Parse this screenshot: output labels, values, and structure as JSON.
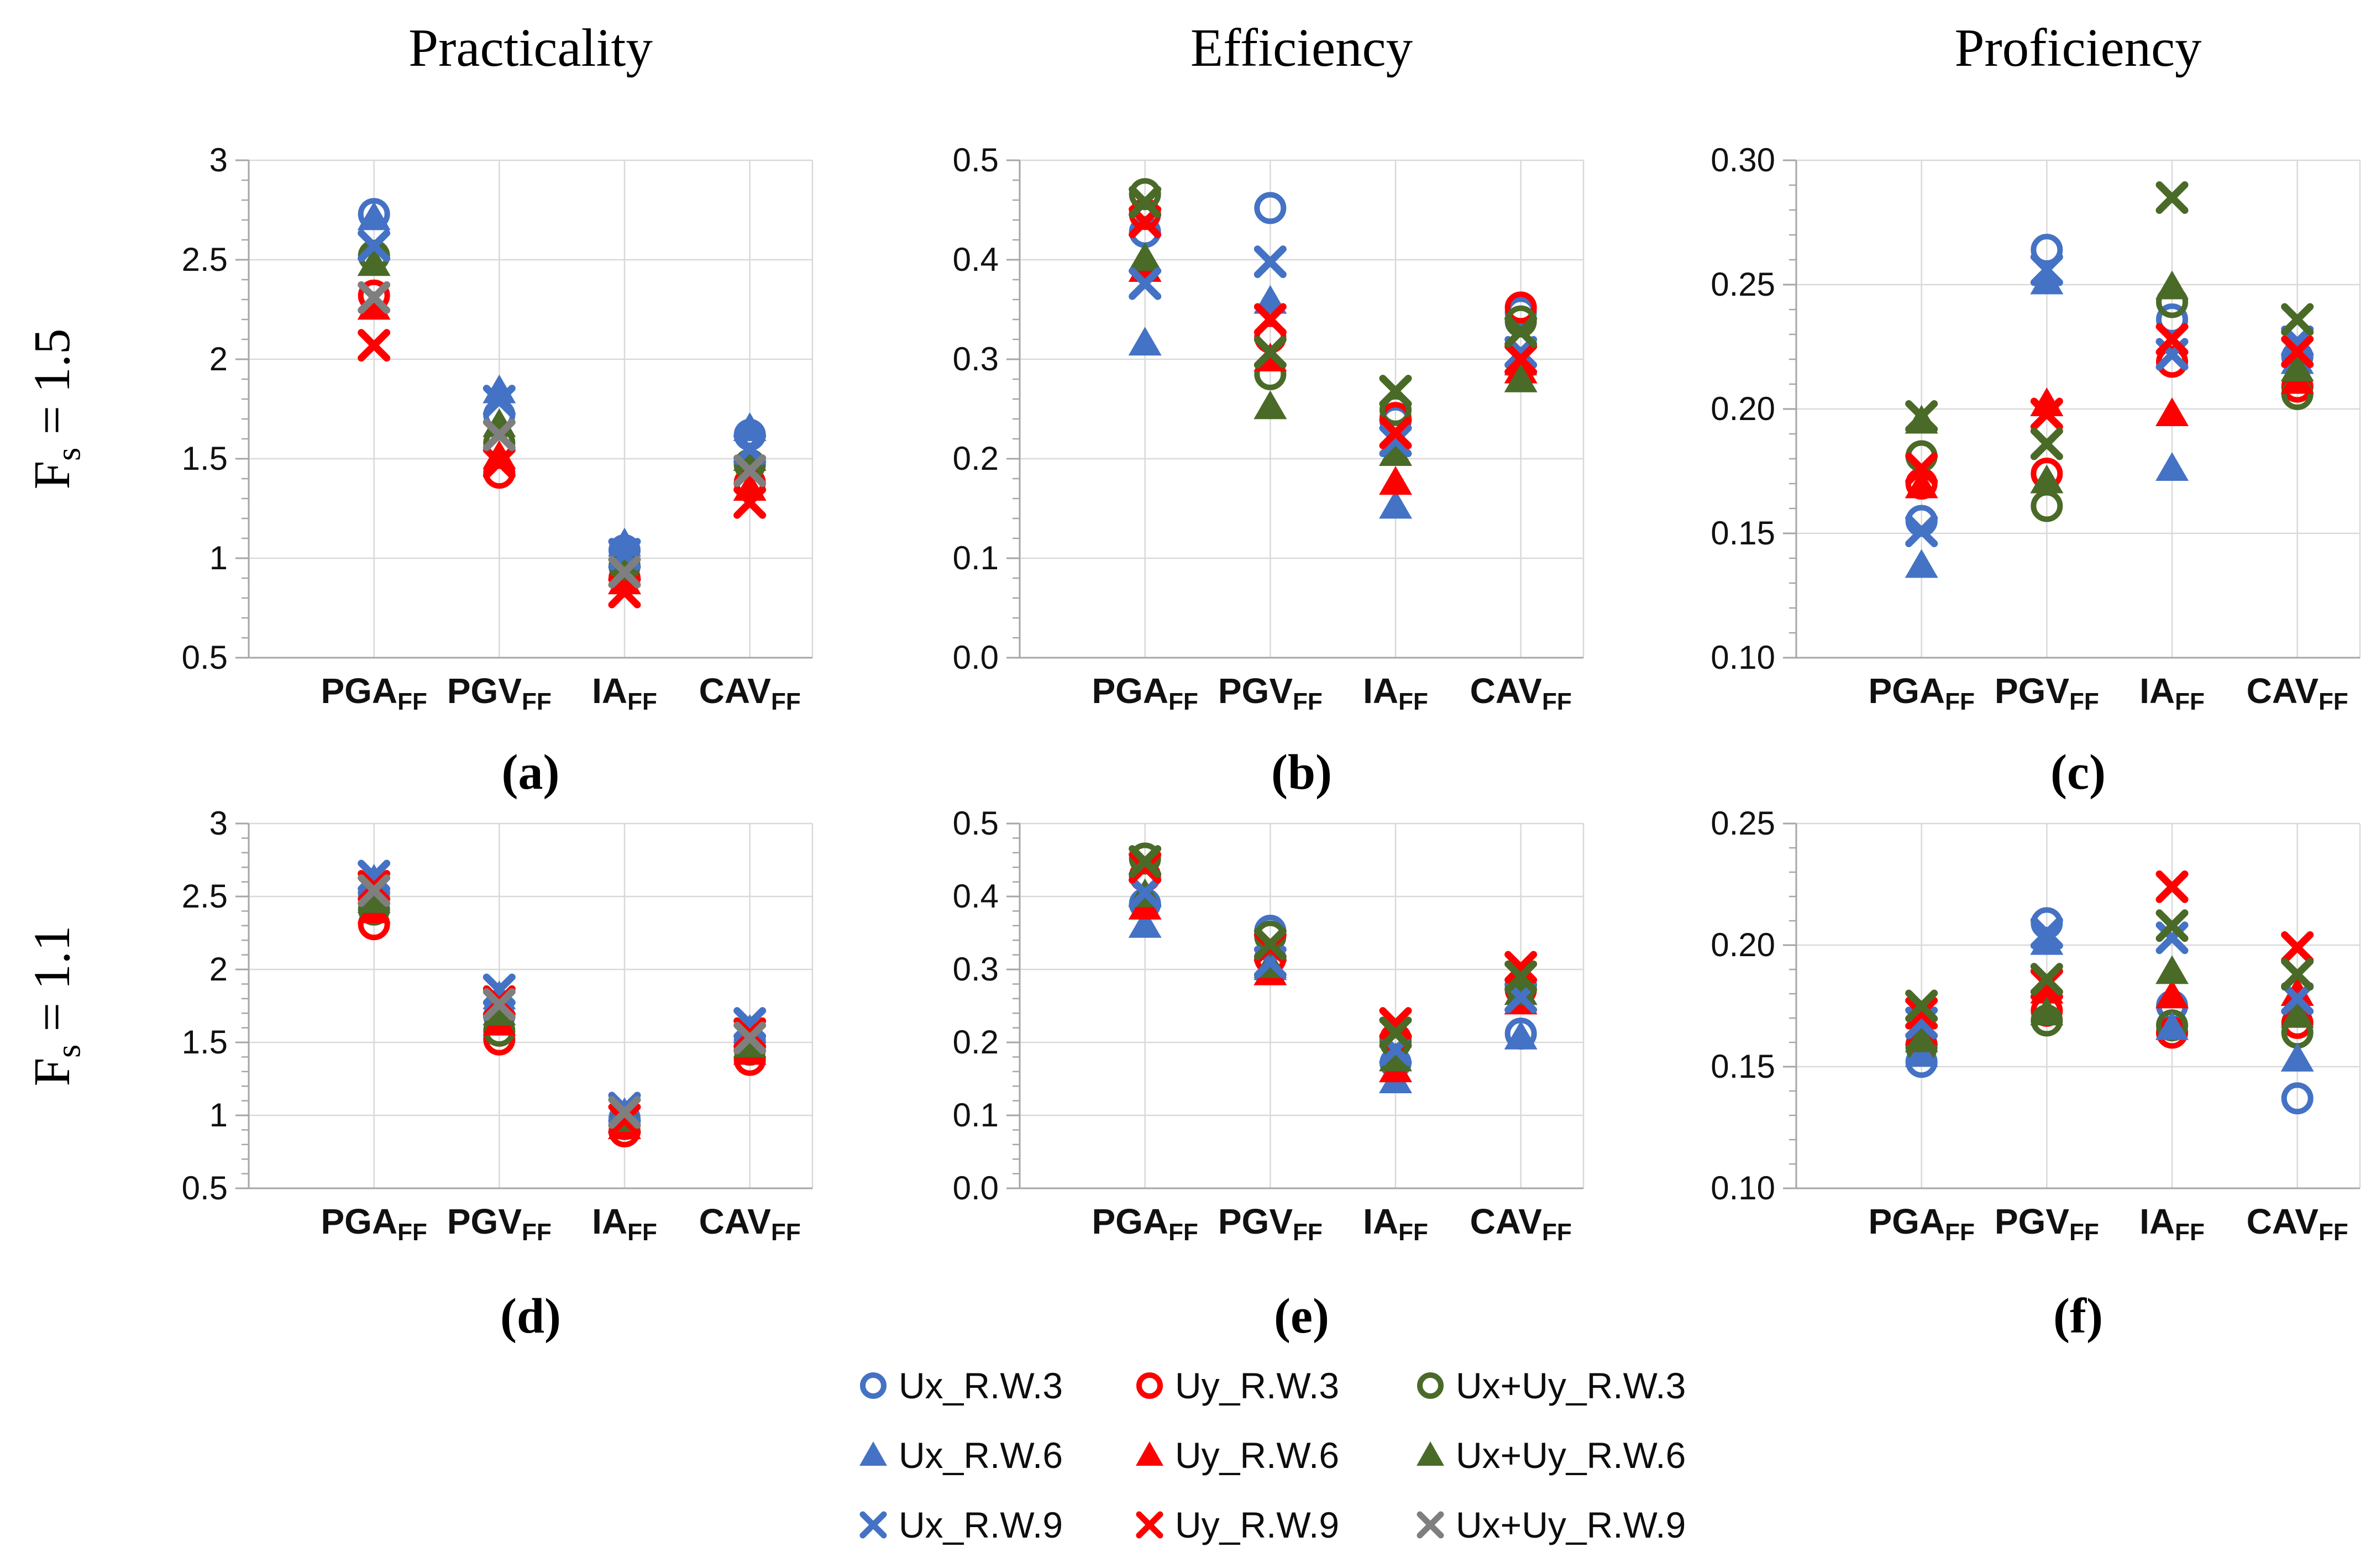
{
  "figure": {
    "column_titles": [
      "Practicality",
      "Efficiency",
      "Proficiency"
    ],
    "row_labels": [
      {
        "main": "F",
        "sub": "s",
        "rest": " = 1.5",
        "text": "Fs = 1.5"
      },
      {
        "main": "F",
        "sub": "s",
        "rest": " = 1.1",
        "text": "Fs = 1.1"
      }
    ]
  },
  "colors": {
    "blue": "#4472C4",
    "red": "#FF0000",
    "green": "#4A6A28",
    "gray": "#7F7F7F",
    "grid": "#D9D9D9",
    "axis": "#A6A6A6",
    "text": "#000000"
  },
  "categories_display": [
    {
      "base": "PGA",
      "sub": "FF"
    },
    {
      "base": "PGV",
      "sub": "FF"
    },
    {
      "base": "IA",
      "sub": "FF"
    },
    {
      "base": "CAV",
      "sub": "FF"
    }
  ],
  "series_defs": [
    {
      "name": "Ux_R.W.3",
      "marker": "circle",
      "color": "blue"
    },
    {
      "name": "Uy_R.W.3",
      "marker": "circle",
      "color": "red"
    },
    {
      "name": "Ux+Uy_R.W.3",
      "marker": "circle",
      "color": "green"
    },
    {
      "name": "Ux_R.W.6",
      "marker": "triangle",
      "color": "blue"
    },
    {
      "name": "Uy_R.W.6",
      "marker": "triangle",
      "color": "red"
    },
    {
      "name": "Ux+Uy_R.W.6",
      "marker": "triangle",
      "color": "green"
    },
    {
      "name": "Ux_R.W.9",
      "marker": "x",
      "color": "blue"
    },
    {
      "name": "Uy_R.W.9",
      "marker": "x",
      "color": "red"
    },
    {
      "name": "Ux+Uy_R.W.9",
      "marker": "x",
      "color": "gray"
    }
  ],
  "legend": {
    "items": [
      {
        "label": "Ux_R.W.3",
        "marker": "circle",
        "color": "blue",
        "row": 0,
        "col": 0
      },
      {
        "label": "Uy_R.W.3",
        "marker": "circle",
        "color": "red",
        "row": 0,
        "col": 1
      },
      {
        "label": "Ux+Uy_R.W.3",
        "marker": "circle",
        "color": "green",
        "row": 0,
        "col": 2
      },
      {
        "label": "Ux_R.W.6",
        "marker": "triangle",
        "color": "blue",
        "row": 1,
        "col": 0
      },
      {
        "label": "Uy_R.W.6",
        "marker": "triangle",
        "color": "red",
        "row": 1,
        "col": 1
      },
      {
        "label": "Ux+Uy_R.W.6",
        "marker": "triangle",
        "color": "green",
        "row": 1,
        "col": 2
      },
      {
        "label": "Ux_R.W.9",
        "marker": "x",
        "color": "blue",
        "row": 2,
        "col": 0
      },
      {
        "label": "Uy_R.W.9",
        "marker": "x",
        "color": "red",
        "row": 2,
        "col": 1
      },
      {
        "label": "Ux+Uy_R.W.9",
        "marker": "x",
        "color": "gray",
        "row": 2,
        "col": 2
      }
    ]
  },
  "chart_data": [
    {
      "panel": "a",
      "letter": "(a)",
      "type": "scatter",
      "title": "Practicality",
      "row_label": "Fs = 1.5",
      "categories": [
        "PGA_FF",
        "PGV_FF",
        "IA_FF",
        "CAV_FF"
      ],
      "ylim": [
        0.5,
        3
      ],
      "ytick_values": [
        3,
        2.5,
        2,
        1.5,
        1,
        0.5
      ],
      "ytick_labels": [
        "3",
        "2.5",
        "2",
        "1.5",
        "1",
        "0.5"
      ],
      "minor_step": 0.1,
      "grid": true,
      "series": [
        {
          "name": "Ux_R.W.3",
          "values": [
            2.73,
            1.72,
            1.04,
            1.62
          ]
        },
        {
          "name": "Uy_R.W.3",
          "values": [
            2.32,
            1.43,
            0.9,
            1.38
          ]
        },
        {
          "name": "Ux+Uy_R.W.3",
          "values": [
            2.52,
            1.58,
            0.96,
            1.47
          ]
        },
        {
          "name": "Ux_R.W.6",
          "values": [
            2.71,
            1.84,
            1.07,
            1.65
          ]
        },
        {
          "name": "Uy_R.W.6",
          "values": [
            2.26,
            1.51,
            0.88,
            1.35
          ]
        },
        {
          "name": "Ux+Uy_R.W.6",
          "values": [
            2.48,
            1.67,
            0.95,
            1.5
          ]
        },
        {
          "name": "Ux_R.W.9",
          "values": [
            2.57,
            1.79,
            1.02,
            1.55
          ]
        },
        {
          "name": "Uy_R.W.9",
          "values": [
            2.07,
            1.48,
            0.83,
            1.28
          ]
        },
        {
          "name": "Ux+Uy_R.W.9",
          "values": [
            2.31,
            1.62,
            0.93,
            1.44
          ]
        }
      ],
      "series_color_overrides": {}
    },
    {
      "panel": "b",
      "letter": "(b)",
      "type": "scatter",
      "title": "Efficiency",
      "row_label": "Fs = 1.5",
      "categories": [
        "PGA_FF",
        "PGV_FF",
        "IA_FF",
        "CAV_FF"
      ],
      "ylim": [
        0.0,
        0.5
      ],
      "ytick_values": [
        0.5,
        0.4,
        0.3,
        0.2,
        0.1,
        0.0
      ],
      "ytick_labels": [
        "0.5",
        "0.4",
        "0.3",
        "0.2",
        "0.1",
        "0.0"
      ],
      "minor_step": 0.02,
      "grid": true,
      "series": [
        {
          "name": "Ux_R.W.3",
          "values": [
            0.428,
            0.452,
            0.238,
            0.347
          ]
        },
        {
          "name": "Uy_R.W.3",
          "values": [
            0.446,
            0.322,
            0.241,
            0.352
          ]
        },
        {
          "name": "Ux+Uy_R.W.3",
          "values": [
            0.466,
            0.285,
            0.249,
            0.338
          ]
        },
        {
          "name": "Ux_R.W.6",
          "values": [
            0.316,
            0.358,
            0.152,
            0.296
          ]
        },
        {
          "name": "Uy_R.W.6",
          "values": [
            0.39,
            0.3,
            0.176,
            0.288
          ]
        },
        {
          "name": "Ux+Uy_R.W.6",
          "values": [
            0.401,
            0.252,
            0.205,
            0.279
          ]
        },
        {
          "name": "Ux_R.W.9",
          "values": [
            0.376,
            0.398,
            0.218,
            0.307
          ]
        },
        {
          "name": "Uy_R.W.9",
          "values": [
            0.438,
            0.34,
            0.226,
            0.3
          ]
        },
        {
          "name": "Ux+Uy_R.W.9",
          "values": [
            0.458,
            0.307,
            0.268,
            0.328
          ]
        }
      ],
      "series_color_overrides": {
        "Ux+Uy_R.W.9": "green"
      }
    },
    {
      "panel": "c",
      "letter": "(c)",
      "type": "scatter",
      "title": "Proficiency",
      "row_label": "Fs = 1.5",
      "categories": [
        "PGA_FF",
        "PGV_FF",
        "IA_FF",
        "CAV_FF"
      ],
      "ylim": [
        0.1,
        0.3
      ],
      "ytick_values": [
        0.3,
        0.25,
        0.2,
        0.15,
        0.1
      ],
      "ytick_labels": [
        "0.30",
        "0.25",
        "0.20",
        "0.15",
        "0.10"
      ],
      "minor_step": 0.01,
      "grid": true,
      "series": [
        {
          "name": "Ux_R.W.3",
          "values": [
            0.155,
            0.264,
            0.236,
            0.221
          ]
        },
        {
          "name": "Uy_R.W.3",
          "values": [
            0.17,
            0.174,
            0.219,
            0.209
          ]
        },
        {
          "name": "Ux+Uy_R.W.3",
          "values": [
            0.181,
            0.161,
            0.243,
            0.206
          ]
        },
        {
          "name": "Ux_R.W.6",
          "values": [
            0.137,
            0.251,
            0.176,
            0.219
          ]
        },
        {
          "name": "Uy_R.W.6",
          "values": [
            0.169,
            0.202,
            0.198,
            0.211
          ]
        },
        {
          "name": "Ux+Uy_R.W.6",
          "values": [
            0.195,
            0.171,
            0.249,
            0.216
          ]
        },
        {
          "name": "Ux_R.W.9",
          "values": [
            0.151,
            0.256,
            0.222,
            0.227
          ]
        },
        {
          "name": "Uy_R.W.9",
          "values": [
            0.176,
            0.198,
            0.228,
            0.223
          ]
        },
        {
          "name": "Ux+Uy_R.W.9",
          "values": [
            0.197,
            0.186,
            0.285,
            0.236
          ]
        }
      ],
      "series_color_overrides": {
        "Ux+Uy_R.W.9": "green"
      }
    },
    {
      "panel": "d",
      "letter": "(d)",
      "type": "scatter",
      "title": "Practicality",
      "row_label": "Fs = 1.1",
      "categories": [
        "PGA_FF",
        "PGV_FF",
        "IA_FF",
        "CAV_FF"
      ],
      "ylim": [
        0.5,
        3
      ],
      "ytick_values": [
        3,
        2.5,
        2,
        1.5,
        1,
        0.5
      ],
      "ytick_labels": [
        "3",
        "2.5",
        "2",
        "1.5",
        "1",
        "0.5"
      ],
      "minor_step": 0.1,
      "grid": true,
      "series": [
        {
          "name": "Ux_R.W.3",
          "values": [
            2.52,
            1.68,
            0.98,
            1.51
          ]
        },
        {
          "name": "Uy_R.W.3",
          "values": [
            2.31,
            1.52,
            0.89,
            1.38
          ]
        },
        {
          "name": "Ux+Uy_R.W.3",
          "values": [
            2.41,
            1.58,
            0.94,
            1.45
          ]
        },
        {
          "name": "Ux_R.W.6",
          "values": [
            2.61,
            1.81,
            1.01,
            1.58
          ]
        },
        {
          "name": "Uy_R.W.6",
          "values": [
            2.4,
            1.63,
            0.92,
            1.43
          ]
        },
        {
          "name": "Ux+Uy_R.W.6",
          "values": [
            2.47,
            1.7,
            0.97,
            1.48
          ]
        },
        {
          "name": "Ux_R.W.9",
          "values": [
            2.64,
            1.86,
            1.05,
            1.63
          ]
        },
        {
          "name": "Uy_R.W.9",
          "values": [
            2.57,
            1.78,
            0.97,
            1.56
          ]
        },
        {
          "name": "Ux+Uy_R.W.9",
          "values": [
            2.54,
            1.76,
            1.02,
            1.53
          ]
        }
      ],
      "series_color_overrides": {}
    },
    {
      "panel": "e",
      "letter": "(e)",
      "type": "scatter",
      "title": "Efficiency",
      "row_label": "Fs = 1.1",
      "categories": [
        "PGA_FF",
        "PGV_FF",
        "IA_FF",
        "CAV_FF"
      ],
      "ylim": [
        0.0,
        0.5
      ],
      "ytick_values": [
        0.5,
        0.4,
        0.3,
        0.2,
        0.1,
        0.0
      ],
      "ytick_labels": [
        "0.5",
        "0.4",
        "0.3",
        "0.2",
        "0.1",
        "0.0"
      ],
      "minor_step": 0.02,
      "grid": true,
      "series": [
        {
          "name": "Ux_R.W.3",
          "values": [
            0.39,
            0.353,
            0.172,
            0.212
          ]
        },
        {
          "name": "Uy_R.W.3",
          "values": [
            0.428,
            0.315,
            0.205,
            0.272
          ]
        },
        {
          "name": "Ux+Uy_R.W.3",
          "values": [
            0.452,
            0.345,
            0.2,
            0.277
          ]
        },
        {
          "name": "Ux_R.W.6",
          "values": [
            0.36,
            0.302,
            0.147,
            0.207
          ]
        },
        {
          "name": "Uy_R.W.6",
          "values": [
            0.385,
            0.295,
            0.162,
            0.255
          ]
        },
        {
          "name": "Ux+Uy_R.W.6",
          "values": [
            0.402,
            0.305,
            0.177,
            0.268
          ]
        },
        {
          "name": "Ux_R.W.9",
          "values": [
            0.405,
            0.31,
            0.19,
            0.262
          ]
        },
        {
          "name": "Uy_R.W.9",
          "values": [
            0.44,
            0.33,
            0.226,
            0.303
          ]
        },
        {
          "name": "Ux+Uy_R.W.9",
          "values": [
            0.448,
            0.335,
            0.213,
            0.29
          ]
        }
      ],
      "series_color_overrides": {
        "Ux+Uy_R.W.9": "green"
      }
    },
    {
      "panel": "f",
      "letter": "(f)",
      "type": "scatter",
      "title": "Proficiency",
      "row_label": "Fs = 1.1",
      "categories": [
        "PGA_FF",
        "PGV_FF",
        "IA_FF",
        "CAV_FF"
      ],
      "ylim": [
        0.1,
        0.25
      ],
      "ytick_values": [
        0.25,
        0.2,
        0.15,
        0.1
      ],
      "ytick_labels": [
        "0.25",
        "0.20",
        "0.15",
        "0.10"
      ],
      "minor_step": 0.01,
      "grid": true,
      "series": [
        {
          "name": "Ux_R.W.3",
          "values": [
            0.152,
            0.209,
            0.175,
            0.137
          ]
        },
        {
          "name": "Uy_R.W.3",
          "values": [
            0.159,
            0.173,
            0.164,
            0.168
          ]
        },
        {
          "name": "Ux+Uy_R.W.3",
          "values": [
            0.158,
            0.169,
            0.167,
            0.164
          ]
        },
        {
          "name": "Ux_R.W.6",
          "values": [
            0.155,
            0.201,
            0.166,
            0.153
          ]
        },
        {
          "name": "Uy_R.W.6",
          "values": [
            0.164,
            0.181,
            0.179,
            0.18
          ]
        },
        {
          "name": "Ux+Uy_R.W.6",
          "values": [
            0.161,
            0.172,
            0.189,
            0.171
          ]
        },
        {
          "name": "Ux_R.W.9",
          "values": [
            0.168,
            0.205,
            0.203,
            0.178
          ]
        },
        {
          "name": "Uy_R.W.9",
          "values": [
            0.172,
            0.184,
            0.224,
            0.199
          ]
        },
        {
          "name": "Ux+Uy_R.W.9",
          "values": [
            0.175,
            0.186,
            0.208,
            0.188
          ]
        }
      ],
      "series_color_overrides": {
        "Ux+Uy_R.W.9": "green"
      }
    }
  ]
}
